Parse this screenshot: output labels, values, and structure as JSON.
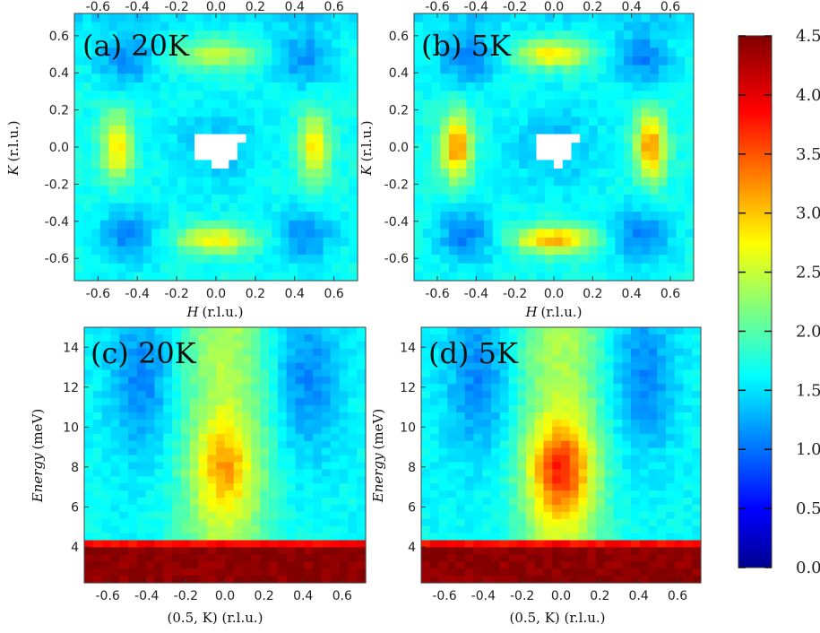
{
  "chart_data": {
    "type": "heatmap",
    "colorbar": {
      "min": 0.0,
      "max": 4.5,
      "colormap": "jet",
      "tick_labels": [
        "0.0",
        "0.5",
        "1.0",
        "1.5",
        "2.0",
        "2.5",
        "3.0",
        "3.5",
        "4.0",
        "4.5"
      ],
      "tick_values": [
        0,
        0.5,
        1.0,
        1.5,
        2.0,
        2.5,
        3.0,
        3.5,
        4.0,
        4.5
      ]
    },
    "panels": [
      {
        "id": "a",
        "title": "(a) 20K",
        "temperature": "20K",
        "kind": "hk",
        "xlabel": "H",
        "xlabel_unit": "(r.l.u.)",
        "ylabel": "K",
        "ylabel_unit": "(r.l.u.)",
        "xlim": [
          -0.72,
          0.72
        ],
        "ylim": [
          -0.72,
          0.72
        ],
        "bottom_ticks": [
          "-0.6",
          "-0.4",
          "-0.2",
          "0.0",
          "0.2",
          "0.4",
          "0.6"
        ],
        "bottom_tick_values": [
          -0.6,
          -0.4,
          -0.2,
          0.0,
          0.2,
          0.4,
          0.6
        ],
        "top_ticks": [
          "-0.6",
          "-0.4",
          "-0.2",
          "0.0",
          "0.2",
          "0.4",
          "0.6"
        ],
        "top_tick_values": [
          -0.6,
          -0.4,
          -0.2,
          0.0,
          0.2,
          0.4,
          0.6
        ],
        "left_ticks": [
          "-0.6",
          "-0.4",
          "-0.2",
          "0.0",
          "0.2",
          "0.4",
          "0.6"
        ],
        "left_tick_values": [
          -0.6,
          -0.4,
          -0.2,
          0.0,
          0.2,
          0.4,
          0.6
        ],
        "peak_intensity": 2.9,
        "background_intensity": 1.75,
        "minimum_intensity": 1.2
      },
      {
        "id": "b",
        "title": "(b) 5K",
        "temperature": "5K",
        "kind": "hk",
        "xlabel": "H",
        "xlabel_unit": "(r.l.u.)",
        "ylabel": "K",
        "ylabel_unit": "(r.l.u.)",
        "xlim": [
          -0.72,
          0.72
        ],
        "ylim": [
          -0.72,
          0.72
        ],
        "bottom_ticks": [
          "-0.6",
          "-0.4",
          "-0.2",
          "0.0",
          "0.2",
          "0.4",
          "0.6"
        ],
        "bottom_tick_values": [
          -0.6,
          -0.4,
          -0.2,
          0.0,
          0.2,
          0.4,
          0.6
        ],
        "top_ticks": [
          "-0.6",
          "-0.4",
          "-0.2",
          "0.0",
          "0.2",
          "0.4",
          "0.6"
        ],
        "top_tick_values": [
          -0.6,
          -0.4,
          -0.2,
          0.0,
          0.2,
          0.4,
          0.6
        ],
        "left_ticks": [
          "-0.6",
          "-0.4",
          "-0.2",
          "0.0",
          "0.2",
          "0.4",
          "0.6"
        ],
        "left_tick_values": [
          -0.6,
          -0.4,
          -0.2,
          0.0,
          0.2,
          0.4,
          0.6
        ],
        "peak_intensity": 3.3,
        "background_intensity": 1.75,
        "minimum_intensity": 1.15
      },
      {
        "id": "c",
        "title": "(c) 20K",
        "temperature": "20K",
        "kind": "ek",
        "xlabel": "(0.5, K) (r.l.u.)",
        "ylabel": "Energy",
        "ylabel_unit": "(meV)",
        "xlim": [
          -0.72,
          0.72
        ],
        "ylim": [
          2.2,
          15.0
        ],
        "bottom_ticks": [
          "-0.6",
          "-0.4",
          "-0.2",
          "0.0",
          "0.2",
          "0.4",
          "0.6"
        ],
        "bottom_tick_values": [
          -0.6,
          -0.4,
          -0.2,
          0.0,
          0.2,
          0.4,
          0.6
        ],
        "left_ticks": [
          "4",
          "6",
          "8",
          "10",
          "12",
          "14"
        ],
        "left_tick_values": [
          4,
          6,
          8,
          10,
          12,
          14
        ],
        "peak_energy_meV": 8.0,
        "peak_intensity": 3.1,
        "elastic_cutoff_meV": 4.0
      },
      {
        "id": "d",
        "title": "(d) 5K",
        "temperature": "5K",
        "kind": "ek",
        "xlabel": "(0.5, K) (r.l.u.)",
        "ylabel": "Energy",
        "ylabel_unit": "(meV)",
        "xlim": [
          -0.72,
          0.72
        ],
        "ylim": [
          2.2,
          15.0
        ],
        "bottom_ticks": [
          "-0.6",
          "-0.4",
          "-0.2",
          "0.0",
          "0.2",
          "0.4",
          "0.6"
        ],
        "bottom_tick_values": [
          -0.6,
          -0.4,
          -0.2,
          0.0,
          0.2,
          0.4,
          0.6
        ],
        "left_ticks": [
          "4",
          "6",
          "8",
          "10",
          "12",
          "14"
        ],
        "left_tick_values": [
          4,
          6,
          8,
          10,
          12,
          14
        ],
        "peak_energy_meV": 7.8,
        "peak_intensity": 3.7,
        "elastic_cutoff_meV": 3.9
      }
    ]
  }
}
